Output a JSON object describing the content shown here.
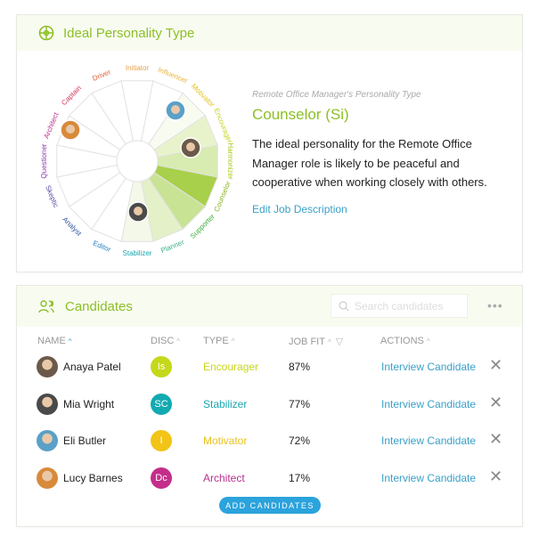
{
  "personality": {
    "title": "Ideal Personality Type",
    "subtitle": "Remote Office Manager's Personality Type",
    "type": "Counselor (Si)",
    "description": "The ideal personality for the Remote Office Manager role is likely to be peaceful and cooperative when working closely with others.",
    "edit_link": "Edit Job Description"
  },
  "wheel": {
    "segments": [
      {
        "label": "Initiator",
        "color": "#e8a24a",
        "fill": "#ffffff"
      },
      {
        "label": "Influencer",
        "color": "#e8b43a",
        "fill": "#ffffff"
      },
      {
        "label": "Motivator",
        "color": "#e3c21e",
        "fill": "#f8fbf0"
      },
      {
        "label": "Encourager",
        "color": "#c8d41e",
        "fill": "#e8f3cc"
      },
      {
        "label": "Harmonizer",
        "color": "#a9c81e",
        "fill": "#d8ebb0"
      },
      {
        "label": "Counselor",
        "color": "#88b524",
        "fill": "#a9d04b"
      },
      {
        "label": "Supporter",
        "color": "#3fae3a",
        "fill": "#c9e395"
      },
      {
        "label": "Planner",
        "color": "#3fb08a",
        "fill": "#e4f0c8"
      },
      {
        "label": "Stabilizer",
        "color": "#1aa8b0",
        "fill": "#f3f8e9"
      },
      {
        "label": "Editor",
        "color": "#2a86c0",
        "fill": "#ffffff"
      },
      {
        "label": "Analyst",
        "color": "#2c55a0",
        "fill": "#ffffff"
      },
      {
        "label": "Skeptic",
        "color": "#5a4aa8",
        "fill": "#ffffff"
      },
      {
        "label": "Questioner",
        "color": "#8a3aa8",
        "fill": "#ffffff"
      },
      {
        "label": "Architect",
        "color": "#b8308a",
        "fill": "#ffffff"
      },
      {
        "label": "Captain",
        "color": "#d63a5a",
        "fill": "#ffffff"
      },
      {
        "label": "Driver",
        "color": "#e0603a",
        "fill": "#ffffff"
      }
    ]
  },
  "candidates": {
    "title": "Candidates",
    "search_placeholder": "Search candidates",
    "more": "•••",
    "columns": {
      "name": "NAME",
      "disc": "DISC",
      "type": "TYPE",
      "job_fit": "JOB FIT",
      "actions": "ACTIONS"
    },
    "rows": [
      {
        "name": "Anaya Patel",
        "disc": "Is",
        "disc_color": "#c5d81a",
        "type": "Encourager",
        "type_color": "#c8d41e",
        "fit": "87%",
        "action": "Interview Candidate"
      },
      {
        "name": "Mia Wright",
        "disc": "SC",
        "disc_color": "#12aab0",
        "type": "Stabilizer",
        "type_color": "#1aa8b0",
        "fit": "77%",
        "action": "Interview Candidate"
      },
      {
        "name": "Eli Butler",
        "disc": "I",
        "disc_color": "#f2c416",
        "type": "Motivator",
        "type_color": "#e8c21e",
        "fit": "72%",
        "action": "Interview Candidate"
      },
      {
        "name": "Lucy Barnes",
        "disc": "Dc",
        "disc_color": "#c42e8a",
        "type": "Architect",
        "type_color": "#b8308a",
        "fit": "17%",
        "action": "Interview Candidate"
      }
    ],
    "add_button": "ADD CANDIDATES"
  }
}
